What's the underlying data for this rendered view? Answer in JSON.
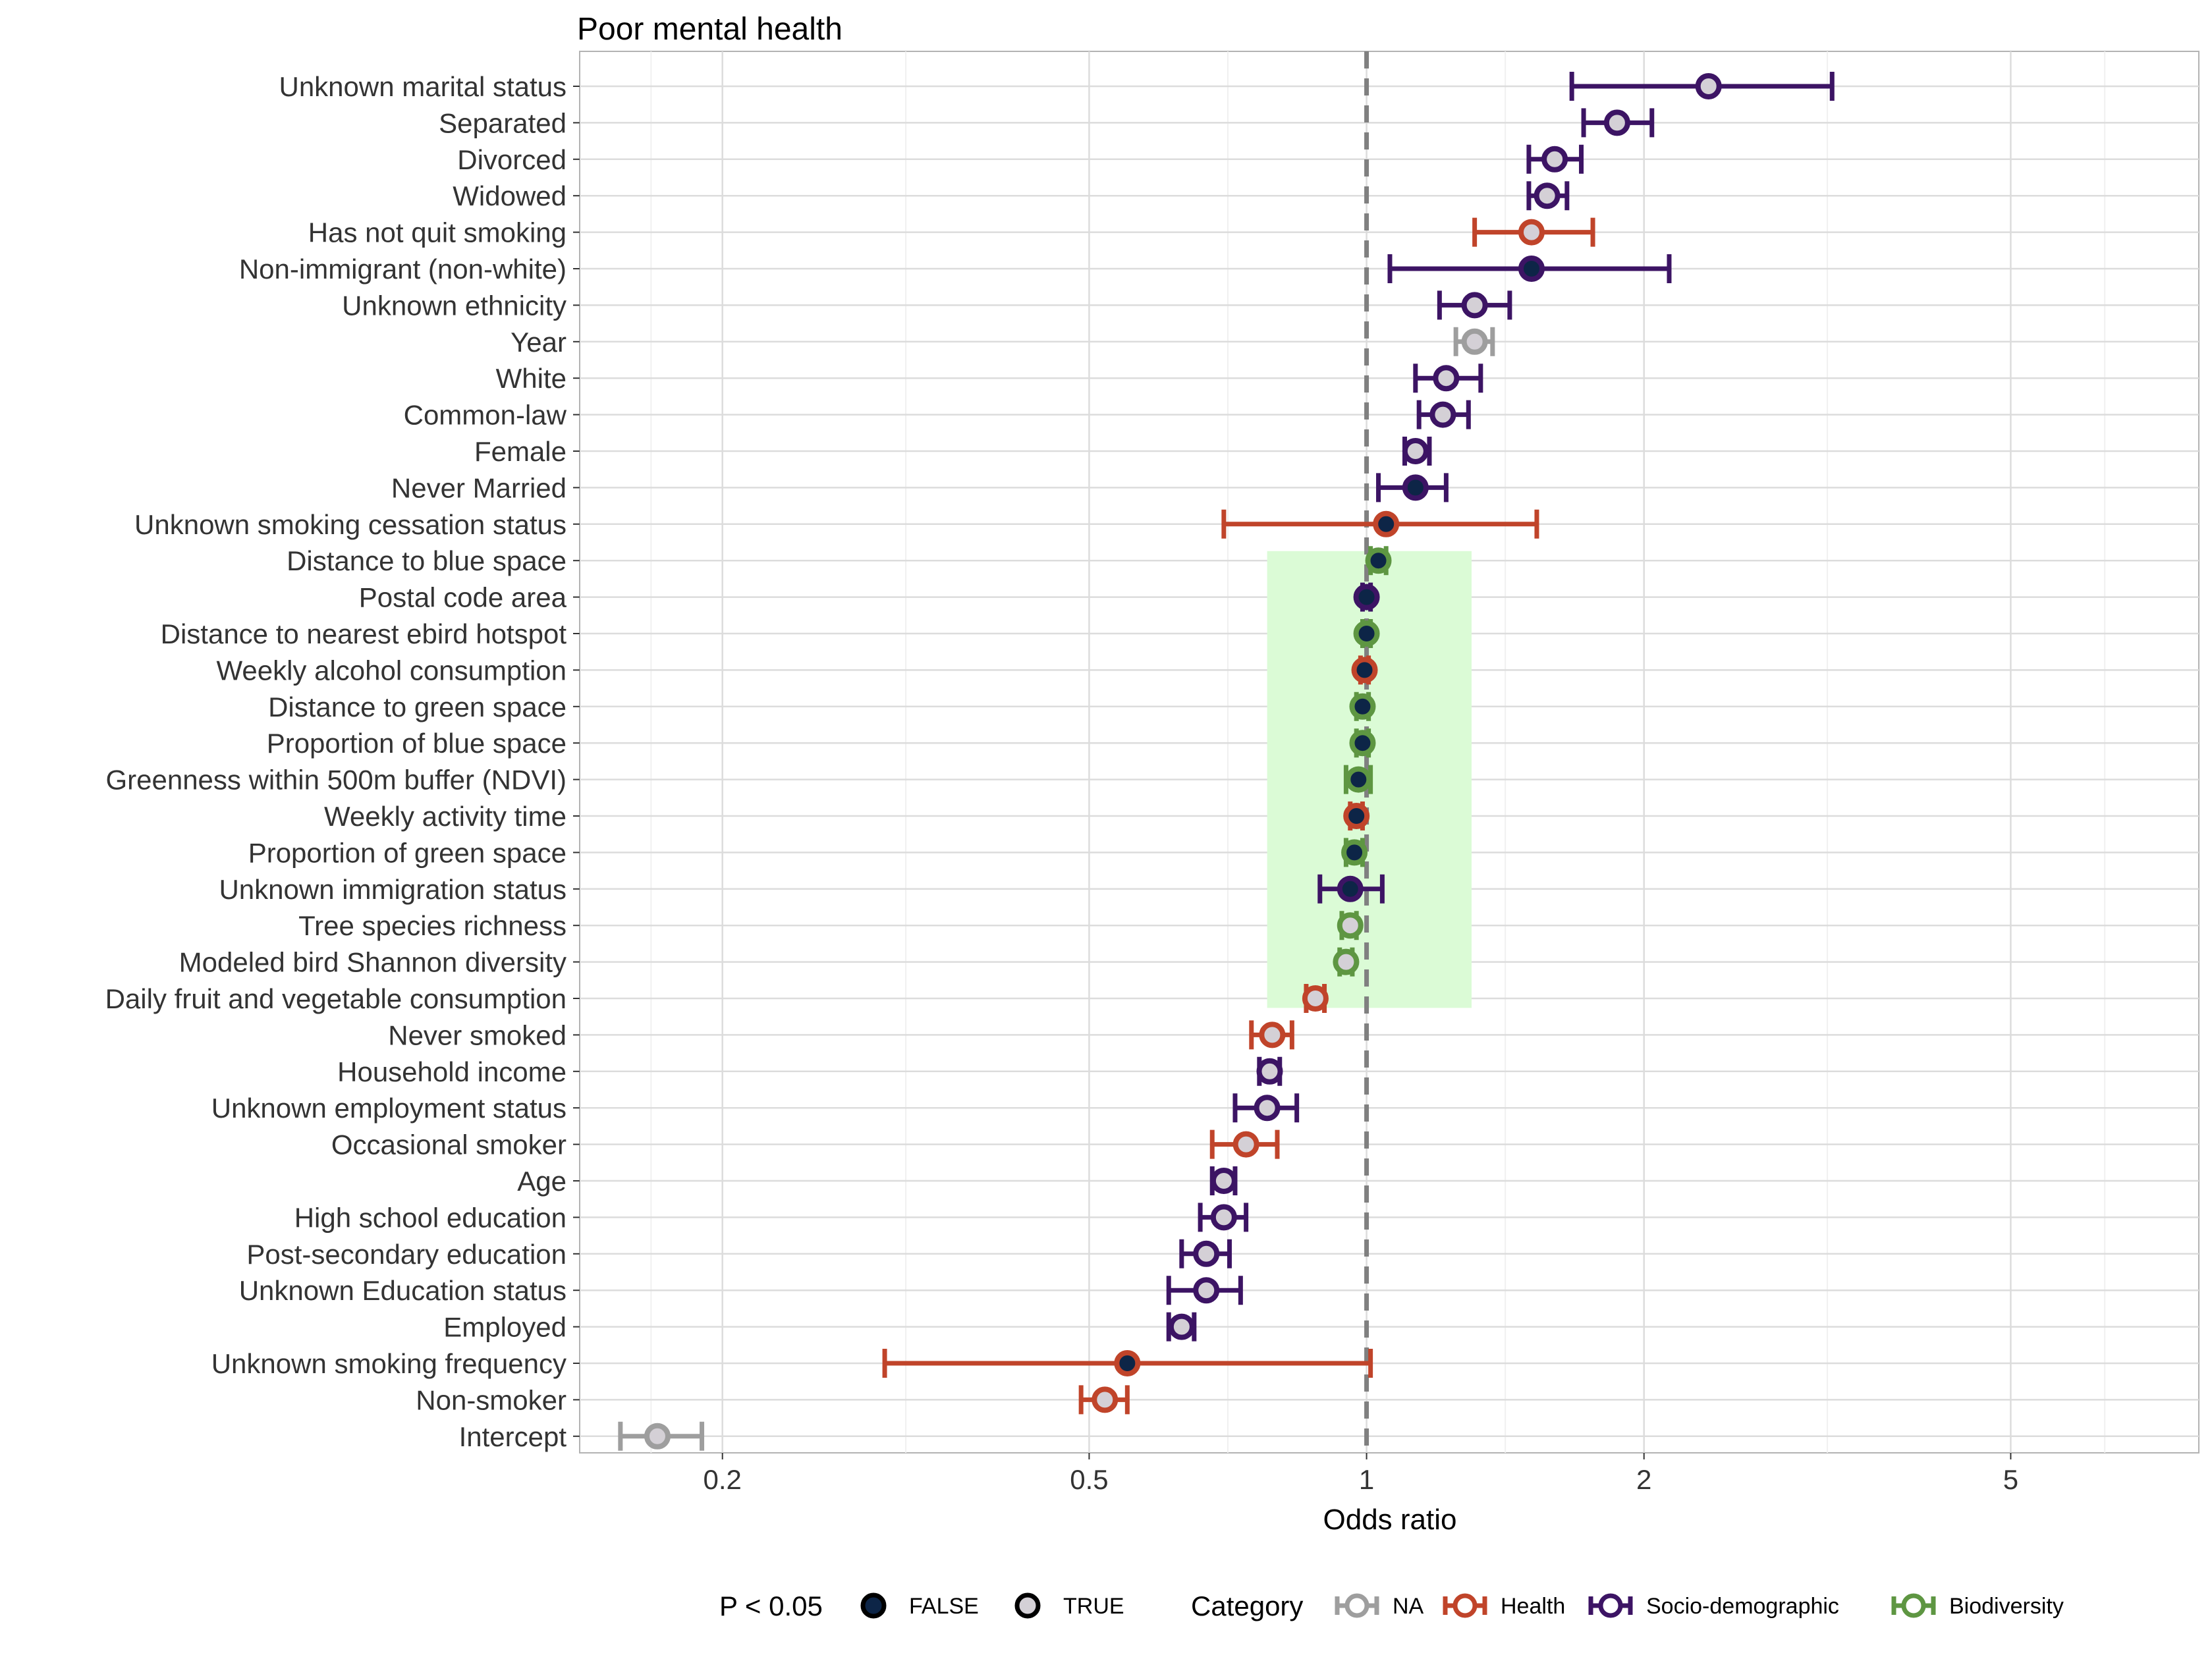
{
  "chart_data": {
    "type": "forest",
    "title": "Poor mental health",
    "xlabel": "Odds ratio",
    "ylabel": "",
    "x_scale": "log",
    "xlim": [
      0.14,
      8.0
    ],
    "x_ticks": [
      {
        "value": 0.2,
        "label": "0.2"
      },
      {
        "value": 0.5,
        "label": "0.5"
      },
      {
        "value": 1,
        "label": "1"
      },
      {
        "value": 2,
        "label": "2"
      },
      {
        "value": 5,
        "label": "5"
      }
    ],
    "reference_line": 1,
    "grid": true,
    "highlight_band": {
      "x_range": [
        0.78,
        1.3
      ],
      "from_category": "Distance to blue space",
      "to_category": "Daily fruit and vegetable consumption",
      "color": "#dbfbd6"
    },
    "colors": {
      "NA": "#9e9e9e",
      "Health": "#c0442a",
      "Socio-demographic": "#3c1464",
      "Biodiversity": "#5e9642",
      "fill_false": "#0d2547",
      "fill_true": "#d4d0d6",
      "reference_line": "#808080"
    },
    "series": [
      {
        "label": "Unknown marital status",
        "or": 2.35,
        "lo": 1.67,
        "hi": 3.2,
        "category": "Socio-demographic",
        "significant": true
      },
      {
        "label": "Separated",
        "or": 1.87,
        "lo": 1.72,
        "hi": 2.04,
        "category": "Socio-demographic",
        "significant": true
      },
      {
        "label": "Divorced",
        "or": 1.6,
        "lo": 1.5,
        "hi": 1.71,
        "category": "Socio-demographic",
        "significant": true
      },
      {
        "label": "Widowed",
        "or": 1.57,
        "lo": 1.5,
        "hi": 1.65,
        "category": "Socio-demographic",
        "significant": true
      },
      {
        "label": "Has not quit smoking",
        "or": 1.51,
        "lo": 1.31,
        "hi": 1.76,
        "category": "Health",
        "significant": true
      },
      {
        "label": "Non-immigrant (non-white)",
        "or": 1.51,
        "lo": 1.06,
        "hi": 2.13,
        "category": "Socio-demographic",
        "significant": false
      },
      {
        "label": "Unknown ethnicity",
        "or": 1.31,
        "lo": 1.2,
        "hi": 1.43,
        "category": "Socio-demographic",
        "significant": true
      },
      {
        "label": "Year",
        "or": 1.31,
        "lo": 1.25,
        "hi": 1.37,
        "category": "NA",
        "significant": true
      },
      {
        "label": "White",
        "or": 1.22,
        "lo": 1.13,
        "hi": 1.33,
        "category": "Socio-demographic",
        "significant": true
      },
      {
        "label": "Common-law",
        "or": 1.21,
        "lo": 1.14,
        "hi": 1.29,
        "category": "Socio-demographic",
        "significant": true
      },
      {
        "label": "Female",
        "or": 1.13,
        "lo": 1.1,
        "hi": 1.17,
        "category": "Socio-demographic",
        "significant": true
      },
      {
        "label": "Never Married",
        "or": 1.13,
        "lo": 1.03,
        "hi": 1.22,
        "category": "Socio-demographic",
        "significant": false
      },
      {
        "label": "Unknown smoking cessation status",
        "or": 1.05,
        "lo": 0.7,
        "hi": 1.53,
        "category": "Health",
        "significant": false
      },
      {
        "label": "Distance to blue space",
        "or": 1.03,
        "lo": 1.01,
        "hi": 1.05,
        "category": "Biodiversity",
        "significant": false
      },
      {
        "label": "Postal code area",
        "or": 1.0,
        "lo": 0.99,
        "hi": 1.01,
        "category": "Socio-demographic",
        "significant": false
      },
      {
        "label": "Distance to nearest ebird hotspot",
        "or": 1.0,
        "lo": 0.99,
        "hi": 1.01,
        "category": "Biodiversity",
        "significant": false
      },
      {
        "label": "Weekly alcohol consumption",
        "or": 0.995,
        "lo": 0.985,
        "hi": 1.005,
        "category": "Health",
        "significant": false
      },
      {
        "label": "Distance to green space",
        "or": 0.99,
        "lo": 0.975,
        "hi": 1.005,
        "category": "Biodiversity",
        "significant": false
      },
      {
        "label": "Proportion of blue space",
        "or": 0.99,
        "lo": 0.975,
        "hi": 1.005,
        "category": "Biodiversity",
        "significant": false
      },
      {
        "label": "Greenness within 500m buffer (NDVI)",
        "or": 0.98,
        "lo": 0.95,
        "hi": 1.01,
        "category": "Biodiversity",
        "significant": false
      },
      {
        "label": "Weekly activity time",
        "or": 0.975,
        "lo": 0.96,
        "hi": 0.99,
        "category": "Health",
        "significant": false
      },
      {
        "label": "Proportion of green space",
        "or": 0.97,
        "lo": 0.95,
        "hi": 0.99,
        "category": "Biodiversity",
        "significant": false
      },
      {
        "label": "Unknown immigration status",
        "or": 0.96,
        "lo": 0.89,
        "hi": 1.04,
        "category": "Socio-demographic",
        "significant": false
      },
      {
        "label": "Tree species richness",
        "or": 0.96,
        "lo": 0.94,
        "hi": 0.975,
        "category": "Biodiversity",
        "significant": true
      },
      {
        "label": "Modeled bird Shannon diversity",
        "or": 0.95,
        "lo": 0.935,
        "hi": 0.965,
        "category": "Biodiversity",
        "significant": true
      },
      {
        "label": "Daily fruit and vegetable consumption",
        "or": 0.88,
        "lo": 0.86,
        "hi": 0.9,
        "category": "Health",
        "significant": true
      },
      {
        "label": "Never smoked",
        "or": 0.79,
        "lo": 0.75,
        "hi": 0.83,
        "category": "Health",
        "significant": true
      },
      {
        "label": "Household income",
        "or": 0.785,
        "lo": 0.765,
        "hi": 0.805,
        "category": "Socio-demographic",
        "significant": true
      },
      {
        "label": "Unknown employment status",
        "or": 0.78,
        "lo": 0.72,
        "hi": 0.84,
        "category": "Socio-demographic",
        "significant": true
      },
      {
        "label": "Occasional smoker",
        "or": 0.74,
        "lo": 0.68,
        "hi": 0.8,
        "category": "Health",
        "significant": true
      },
      {
        "label": "Age",
        "or": 0.7,
        "lo": 0.68,
        "hi": 0.72,
        "category": "Socio-demographic",
        "significant": true
      },
      {
        "label": "High school education",
        "or": 0.7,
        "lo": 0.66,
        "hi": 0.74,
        "category": "Socio-demographic",
        "significant": true
      },
      {
        "label": "Post-secondary education",
        "or": 0.67,
        "lo": 0.63,
        "hi": 0.71,
        "category": "Socio-demographic",
        "significant": true
      },
      {
        "label": "Unknown Education status",
        "or": 0.67,
        "lo": 0.61,
        "hi": 0.73,
        "category": "Socio-demographic",
        "significant": true
      },
      {
        "label": "Employed",
        "or": 0.63,
        "lo": 0.61,
        "hi": 0.65,
        "category": "Socio-demographic",
        "significant": true
      },
      {
        "label": "Unknown smoking frequency",
        "or": 0.55,
        "lo": 0.3,
        "hi": 1.01,
        "category": "Health",
        "significant": false
      },
      {
        "label": "Non-smoker",
        "or": 0.52,
        "lo": 0.49,
        "hi": 0.55,
        "category": "Health",
        "significant": true
      },
      {
        "label": "Intercept",
        "or": 0.17,
        "lo": 0.155,
        "hi": 0.19,
        "category": "NA",
        "significant": true
      }
    ],
    "legend": {
      "position": "bottom",
      "fill_title": "P < 0.05",
      "fill_entries": [
        {
          "label": "FALSE",
          "significant": false
        },
        {
          "label": "TRUE",
          "significant": true
        }
      ],
      "color_title": "Category",
      "color_entries": [
        {
          "label": "NA",
          "category": "NA"
        },
        {
          "label": "Health",
          "category": "Health"
        },
        {
          "label": "Socio-demographic",
          "category": "Socio-demographic"
        },
        {
          "label": "Biodiversity",
          "category": "Biodiversity"
        }
      ]
    }
  }
}
